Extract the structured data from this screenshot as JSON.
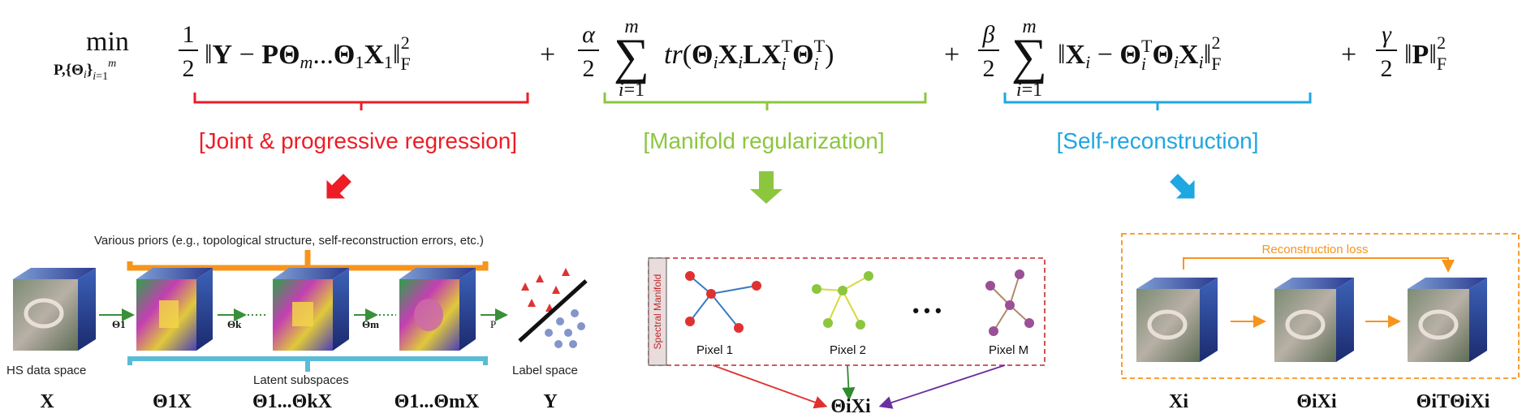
{
  "equation": {
    "objective": "min",
    "subscript": "P,{Θi}i=1m",
    "t1_coef": "1/2",
    "t1_body": "‖Y − PΘm...Θ1X1‖F2",
    "t2_coef": "α/2",
    "t2_sum": "Σ i=1..m",
    "t2_body": "tr(ΘiXiLXiTΘiT)",
    "t3_coef": "β/2",
    "t3_sum": "Σ i=1..m",
    "t3_body": "‖Xi − ΘiTΘiXi‖F2",
    "t4_coef": "γ/2",
    "t4_body": "‖P‖F2"
  },
  "terms": [
    {
      "label": "[Joint & progressive regression]",
      "color": "#ee1c25"
    },
    {
      "label": "[Manifold regularization]",
      "color": "#8cc63f"
    },
    {
      "label": "[Self-reconstruction]",
      "color": "#1ea7e1"
    }
  ],
  "panel1": {
    "priors_label": "Various priors (e.g., topological structure, self-reconstruction errors, etc.)",
    "latent_label": "Latent subspaces",
    "hs_label": "HS data space",
    "label_space": "Label space",
    "arrows": [
      "Θ1",
      "Θk",
      "Θm",
      "P"
    ],
    "bottom": [
      "X",
      "Θ1X",
      "Θ1...ΘkX",
      "Θ1...ΘmX",
      "Y"
    ],
    "colors": {
      "priors": "#f7941d",
      "latent": "#5bbcd6"
    }
  },
  "panel2": {
    "manifold_label": "Spectral Manifold",
    "pixels": [
      "Pixel 1",
      "Pixel 2",
      "Pixel M"
    ],
    "ellipsis": "• • •",
    "output": "ΘiXi",
    "colors": {
      "border": "#c1272d",
      "pixel1_edge": "#3a7bbf",
      "pixel1_node": "#e03131",
      "pixel2_edge": "#d9d93a",
      "pixel2_node": "#8cc63f",
      "pixelM_edge": "#b08968",
      "pixelM_node": "#9b4f96"
    }
  },
  "panel3": {
    "recon_label": "Reconstruction loss",
    "bottom": [
      "Xi",
      "ΘiXi",
      "ΘiTΘiXi"
    ],
    "colors": {
      "border": "#f7941d"
    }
  }
}
